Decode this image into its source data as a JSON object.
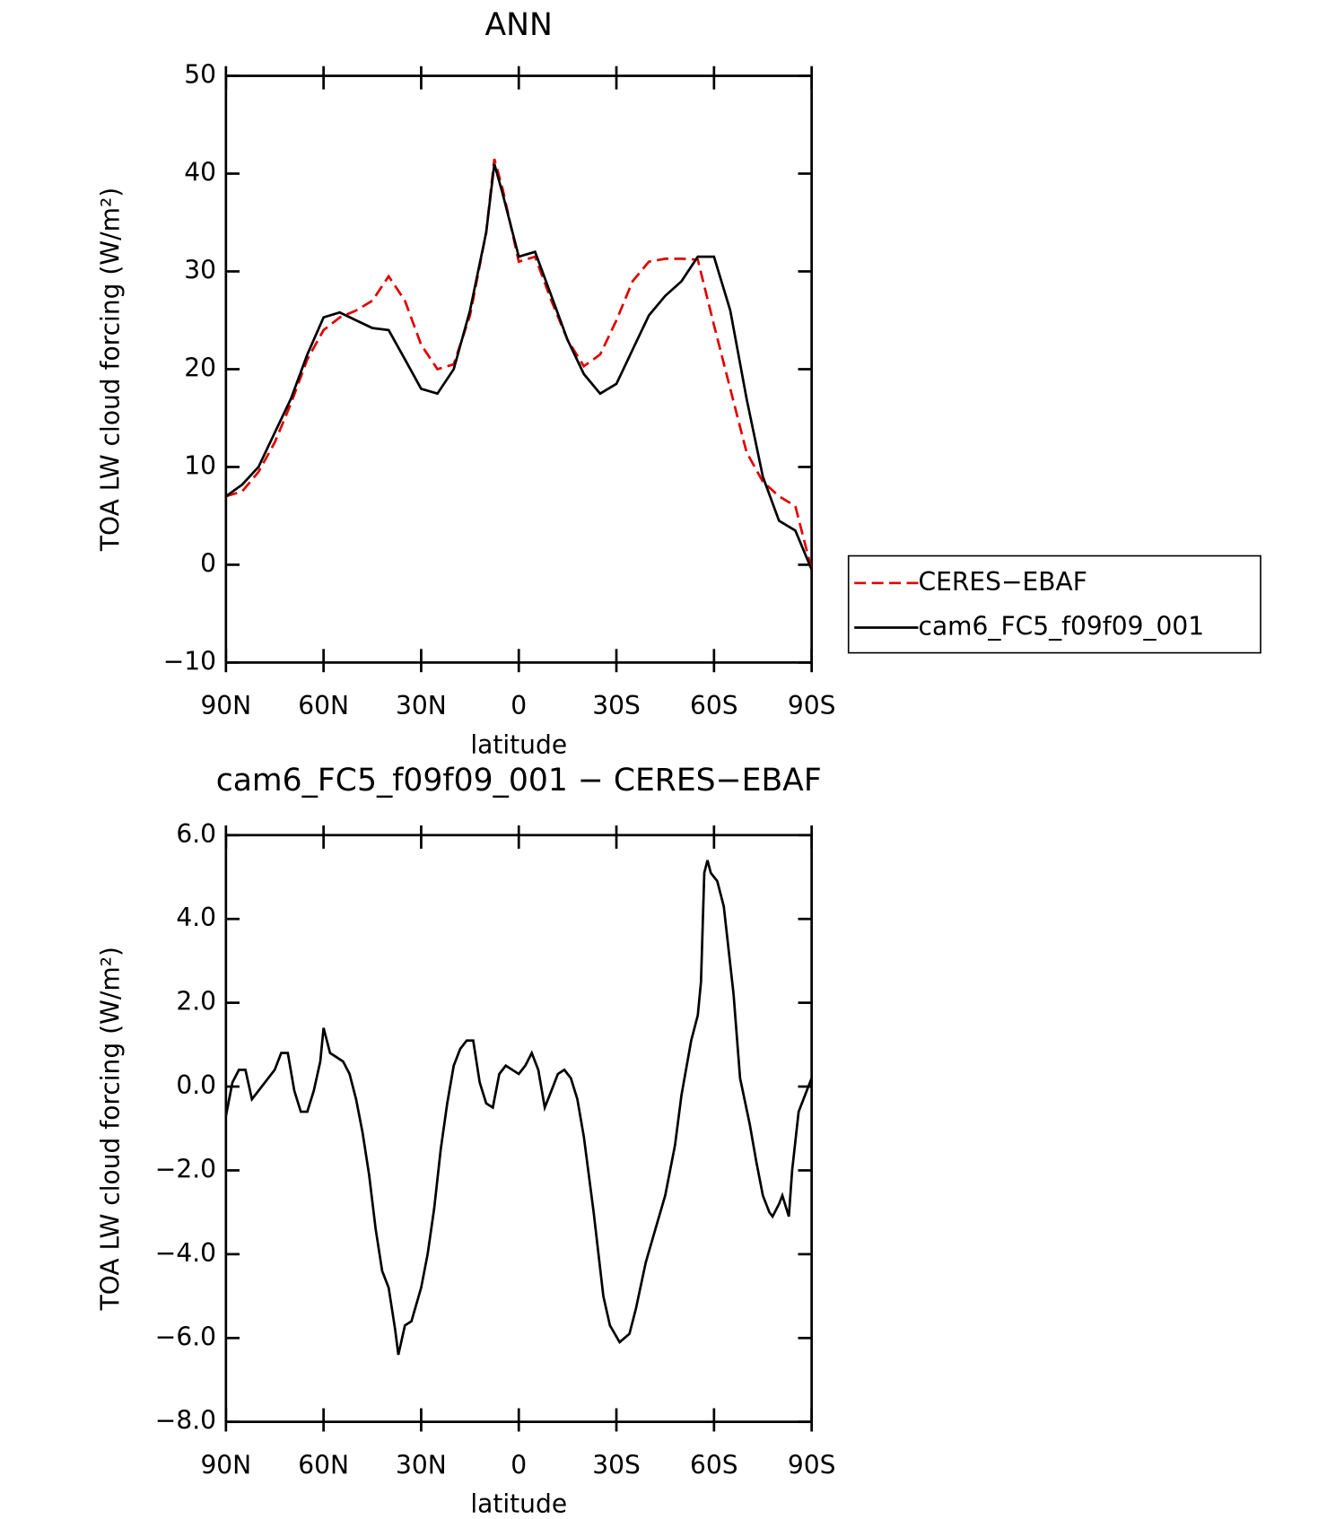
{
  "chart_data": [
    {
      "type": "line",
      "title": "ANN",
      "xlabel": "latitude",
      "ylabel": "TOA LW cloud forcing (W/m²)",
      "xlim": [
        90,
        -90
      ],
      "xticks": [
        {
          "value": 90,
          "label": "90N"
        },
        {
          "value": 60,
          "label": "60N"
        },
        {
          "value": 30,
          "label": "30N"
        },
        0,
        {
          "value": -30,
          "label": "30S"
        },
        {
          "value": -60,
          "label": "60S"
        },
        {
          "value": -90,
          "label": "90S"
        }
      ],
      "ylim": [
        -10,
        50
      ],
      "yticks": [
        {
          "value": -10,
          "label": "−10"
        },
        0,
        10,
        20,
        30,
        40,
        50
      ],
      "legend": "right",
      "x": [
        90,
        85,
        80,
        75,
        70,
        65,
        60,
        55,
        50,
        45,
        40,
        35,
        30,
        25,
        20,
        15,
        10,
        7.5,
        5,
        0,
        -5,
        -10,
        -15,
        -20,
        -25,
        -30,
        -35,
        -40,
        -45,
        -50,
        -55,
        -60,
        -65,
        -70,
        -75,
        -80,
        -85,
        -90
      ],
      "series": [
        {
          "name": "CERES−EBAF",
          "color": "#e00000",
          "linestyle": "dashed",
          "values": [
            7,
            7.5,
            9.5,
            12.5,
            16.5,
            21,
            24,
            25.3,
            26,
            27,
            29.5,
            27,
            22.5,
            20,
            20.5,
            25.5,
            34,
            41.5,
            38.5,
            31,
            31.5,
            27,
            23,
            20.3,
            21.5,
            25,
            29,
            31,
            31.3,
            31.3,
            31.2,
            24.5,
            18,
            11.5,
            8.5,
            7,
            6,
            -0.5
          ]
        },
        {
          "name": "cam6_FC5_f09f09_001",
          "color": "#000000",
          "linestyle": "solid",
          "values": [
            7,
            8.2,
            10,
            13.5,
            17,
            21.5,
            25.3,
            25.8,
            25,
            24.2,
            24,
            21,
            18,
            17.5,
            20,
            26,
            34,
            41,
            38,
            31.5,
            32,
            27.5,
            23,
            19.5,
            17.5,
            18.5,
            22,
            25.5,
            27.5,
            29,
            31.5,
            31.5,
            26,
            17,
            9,
            4.5,
            3.5,
            -0.5
          ]
        }
      ]
    },
    {
      "type": "line",
      "title": "cam6_FC5_f09f09_001 − CERES−EBAF",
      "xlabel": "latitude",
      "ylabel": "TOA LW cloud forcing (W/m²)",
      "xlim": [
        90,
        -90
      ],
      "xticks": [
        {
          "value": 90,
          "label": "90N"
        },
        {
          "value": 60,
          "label": "60N"
        },
        {
          "value": 30,
          "label": "30N"
        },
        0,
        {
          "value": -30,
          "label": "30S"
        },
        {
          "value": -60,
          "label": "60S"
        },
        {
          "value": -90,
          "label": "90S"
        }
      ],
      "ylim": [
        -8,
        6
      ],
      "yticks": [
        {
          "value": -8,
          "label": "−8.0"
        },
        {
          "value": -6,
          "label": "−6.0"
        },
        {
          "value": -4,
          "label": "−4.0"
        },
        {
          "value": -2,
          "label": "−2.0"
        },
        {
          "value": 0,
          "label": "0.0"
        },
        {
          "value": 2,
          "label": "2.0"
        },
        {
          "value": 4,
          "label": "4.0"
        },
        {
          "value": 6,
          "label": "6.0"
        }
      ],
      "x": [
        90,
        88,
        86,
        84,
        82,
        80,
        77,
        75,
        73,
        71,
        69,
        67,
        65,
        63,
        61,
        60,
        58,
        56,
        54,
        52,
        50,
        48,
        46,
        44,
        42,
        40,
        38,
        37,
        35,
        33,
        30,
        28,
        26,
        24,
        22,
        20,
        18,
        16,
        14,
        12,
        10,
        8,
        6,
        4,
        2,
        0,
        -2,
        -4,
        -6,
        -8,
        -10,
        -12,
        -14,
        -16,
        -18,
        -20,
        -23,
        -26,
        -28,
        -31,
        -34,
        -36,
        -39,
        -42,
        -45,
        -48,
        -50,
        -53,
        -55,
        -56,
        -57,
        -58,
        -59,
        -61,
        -63,
        -66,
        -68,
        -71,
        -73,
        -75,
        -77,
        -78,
        -80,
        -81,
        -83,
        -84,
        -86,
        -90
      ],
      "series": [
        {
          "name": "cam6_FC5_f09f09_001 − CERES−EBAF",
          "color": "#000000",
          "linestyle": "solid",
          "values": [
            -0.7,
            0.1,
            0.4,
            0.4,
            -0.3,
            -0.1,
            0.2,
            0.4,
            0.8,
            0.8,
            -0.1,
            -0.6,
            -0.6,
            -0.1,
            0.6,
            1.4,
            0.8,
            0.7,
            0.6,
            0.3,
            -0.3,
            -1.1,
            -2.1,
            -3.4,
            -4.4,
            -4.8,
            -5.8,
            -6.4,
            -5.7,
            -5.6,
            -4.8,
            -4.0,
            -2.9,
            -1.5,
            -0.4,
            0.5,
            0.9,
            1.1,
            1.1,
            0.1,
            -0.4,
            -0.5,
            0.3,
            0.5,
            0.4,
            0.3,
            0.5,
            0.8,
            0.4,
            -0.5,
            -0.1,
            0.3,
            0.4,
            0.2,
            -0.3,
            -1.2,
            -3.0,
            -5.0,
            -5.7,
            -6.1,
            -5.9,
            -5.3,
            -4.2,
            -3.4,
            -2.6,
            -1.4,
            -0.2,
            1.1,
            1.7,
            2.5,
            5.1,
            5.4,
            5.1,
            4.9,
            4.3,
            2.2,
            0.2,
            -0.9,
            -1.8,
            -2.6,
            -3.0,
            -3.1,
            -2.8,
            -2.6,
            -3.1,
            -2.0,
            -0.6,
            0.2
          ]
        }
      ]
    }
  ]
}
